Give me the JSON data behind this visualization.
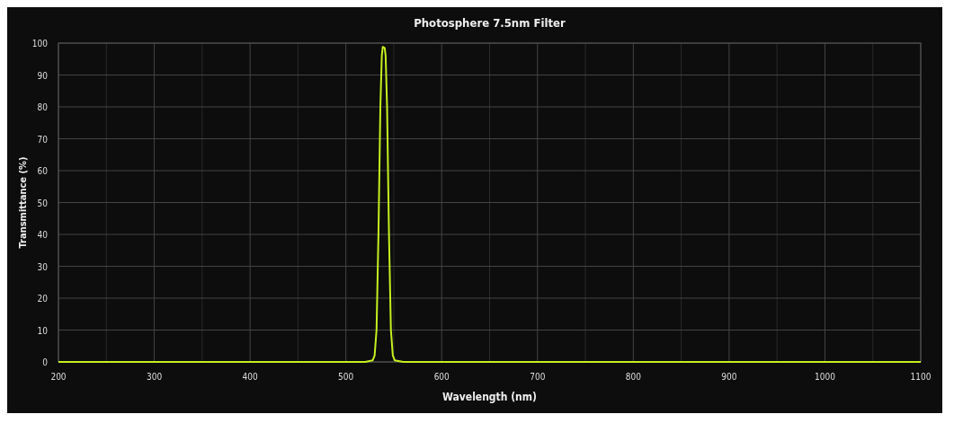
{
  "chart_data": {
    "type": "line",
    "title": "Photosphere 7.5nm Filter",
    "xlabel": "Wavelength (nm)",
    "ylabel": "Transmittance (%)",
    "xlim": [
      200,
      1100
    ],
    "ylim": [
      0,
      100
    ],
    "xticks": [
      200,
      {
        "value": 250,
        "label": null
      },
      300,
      {
        "value": 350,
        "label": null
      },
      400,
      {
        "value": 450,
        "label": null
      },
      500,
      {
        "value": 550,
        "label": null
      },
      600,
      {
        "value": 650,
        "label": null
      },
      700,
      {
        "value": 750,
        "label": null
      },
      800,
      {
        "value": 850,
        "label": null
      },
      900,
      {
        "value": 950,
        "label": null
      },
      1000,
      {
        "value": 1050,
        "label": null
      },
      1100
    ],
    "yticks": [
      0,
      10,
      20,
      30,
      40,
      50,
      60,
      70,
      80,
      90,
      100
    ],
    "grid": true,
    "series": [
      {
        "color": "#c6f01f",
        "x": [
          200,
          520,
          528,
          530,
          532,
          534,
          536,
          537.5,
          538.5,
          540.5,
          541.5,
          543,
          545,
          547,
          549,
          551,
          560,
          1100
        ],
        "values": [
          0,
          0,
          0.5,
          2,
          10,
          40,
          80,
          96,
          98.8,
          98.5,
          96,
          80,
          40,
          10,
          2,
          0.5,
          0,
          0
        ]
      }
    ]
  }
}
